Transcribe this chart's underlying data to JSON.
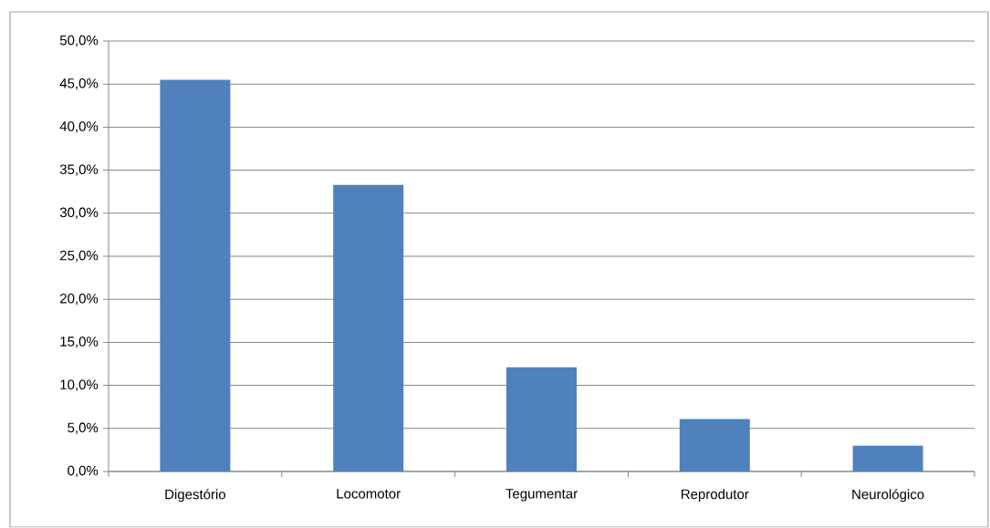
{
  "chart_data": {
    "type": "bar",
    "categories": [
      "Digestório",
      "Locomotor",
      "Tegumentar",
      "Reprodutor",
      "Neurológico"
    ],
    "values": [
      45.5,
      33.3,
      12.1,
      6.1,
      3.0
    ],
    "color": "#4f81bd",
    "ylim": [
      0,
      50
    ],
    "yticks": [
      {
        "value": 0,
        "label": "0,0%"
      },
      {
        "value": 5,
        "label": "5,0%"
      },
      {
        "value": 10,
        "label": "10,0%"
      },
      {
        "value": 15,
        "label": "15,0%"
      },
      {
        "value": 20,
        "label": "20,0%"
      },
      {
        "value": 25,
        "label": "25,0%"
      },
      {
        "value": 30,
        "label": "30,0%"
      },
      {
        "value": 35,
        "label": "35,0%"
      },
      {
        "value": 40,
        "label": "40,0%"
      },
      {
        "value": 45,
        "label": "45,0%"
      },
      {
        "value": 50,
        "label": "50,0%"
      }
    ],
    "grid": "y"
  }
}
